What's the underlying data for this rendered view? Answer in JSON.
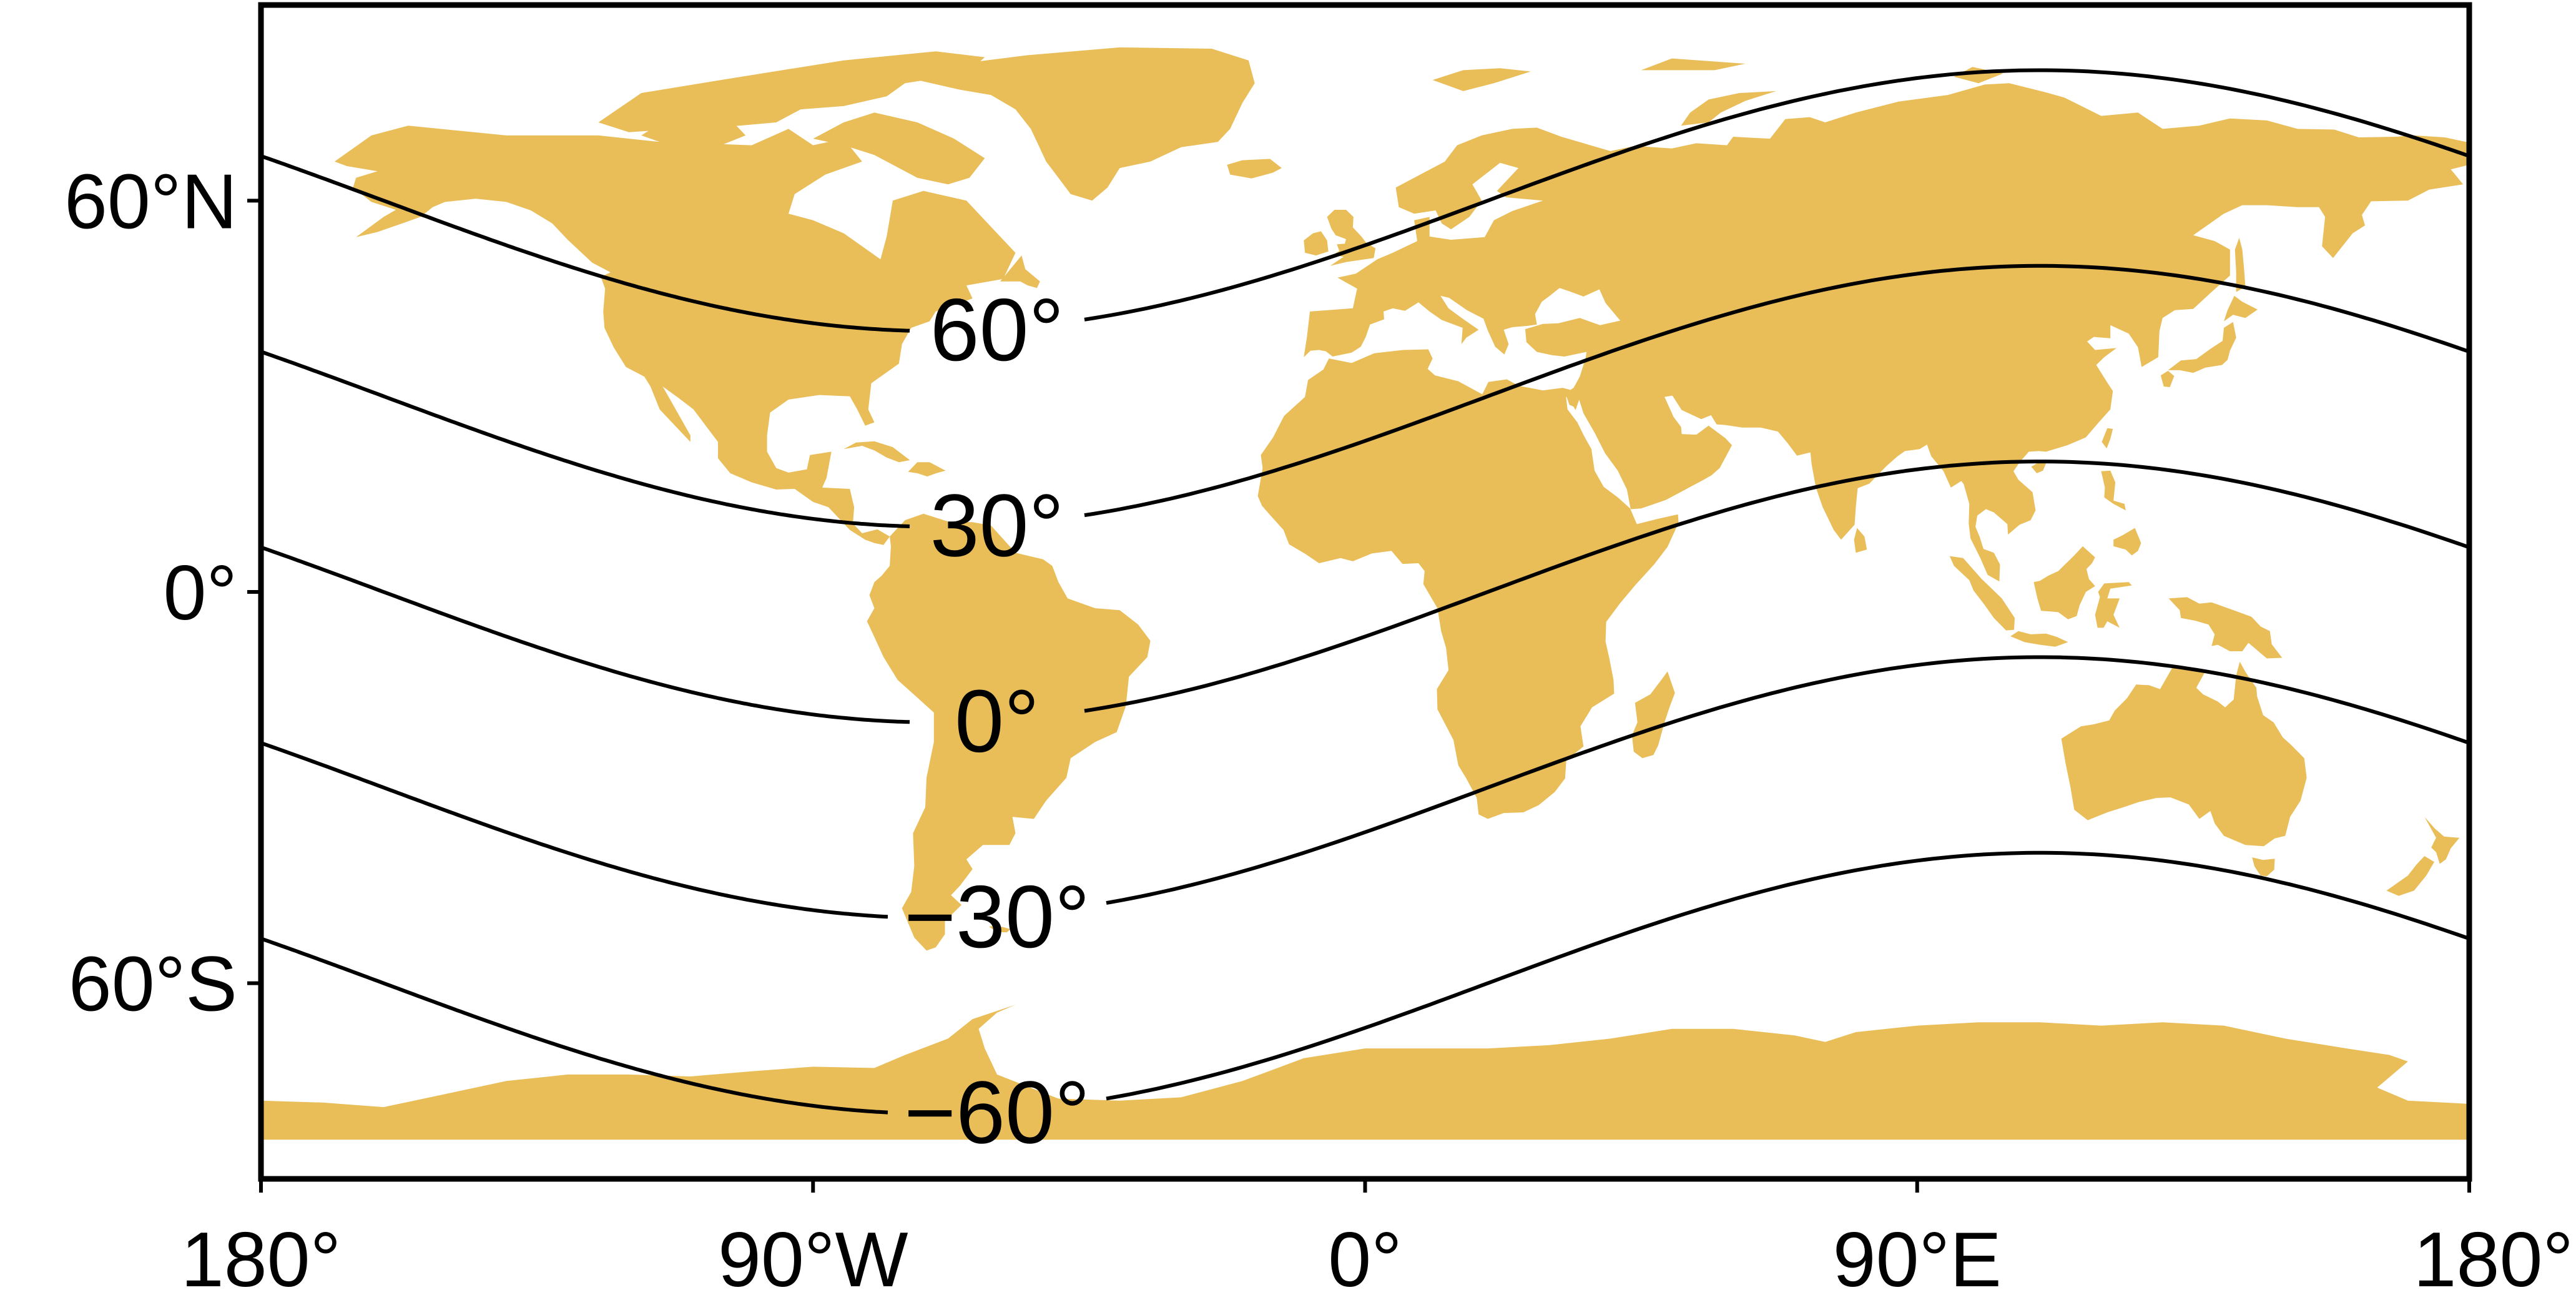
{
  "map": {
    "projection": "equirectangular",
    "land_color": "#e9bd58",
    "frame_color": "#000000",
    "background": "#ffffff",
    "extent": {
      "lon": [
        -180,
        180
      ],
      "lat": [
        -90,
        90
      ]
    },
    "x_ticks": [
      {
        "lon": -180,
        "label": "180°"
      },
      {
        "lon": -90,
        "label": "90°W"
      },
      {
        "lon": 0,
        "label": "0°"
      },
      {
        "lon": 90,
        "label": "90°E"
      },
      {
        "lon": 180,
        "label": "180°"
      }
    ],
    "y_ticks": [
      {
        "lat": 60,
        "label": "60°N"
      },
      {
        "lat": 0,
        "label": "0°"
      },
      {
        "lat": -60,
        "label": "60°S"
      }
    ],
    "contours": [
      {
        "level": 60,
        "label": "60°",
        "label_lon": -60
      },
      {
        "level": 30,
        "label": "30°",
        "label_lon": -60
      },
      {
        "level": 0,
        "label": "0°",
        "label_lon": -60
      },
      {
        "level": -30,
        "label": "−30°",
        "label_lon": -60
      },
      {
        "level": -60,
        "label": "−60°",
        "label_lon": -60
      }
    ],
    "contour_shape": {
      "amplitude_deg": 20,
      "peak_lon": 110
    }
  }
}
